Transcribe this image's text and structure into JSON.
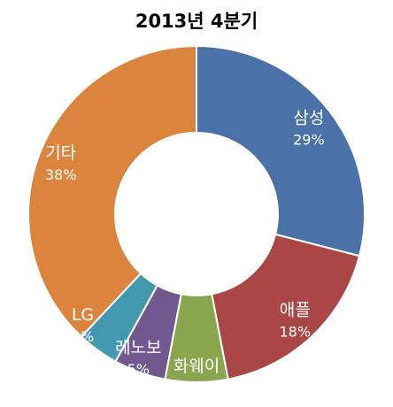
{
  "chart_data": {
    "type": "pie",
    "subtype": "donut",
    "title": "2013년 4분기",
    "slices": [
      {
        "label": "삼성",
        "value": 29,
        "display": "29%",
        "color": "#4A72A8"
      },
      {
        "label": "애플",
        "value": 18,
        "display": "18%",
        "color": "#AA4746"
      },
      {
        "label": "화웨이",
        "value": 6,
        "display": "6%",
        "color": "#89A54E"
      },
      {
        "label": "레노보",
        "value": 5,
        "display": "5%",
        "color": "#71588F"
      },
      {
        "label": "LG",
        "value": 4,
        "display": "4%",
        "color": "#4198AF"
      },
      {
        "label": "기타",
        "value": 38,
        "display": "38%",
        "color": "#DB843D"
      }
    ],
    "legend": "none",
    "start_angle": "12 o'clock",
    "direction": "clockwise"
  }
}
